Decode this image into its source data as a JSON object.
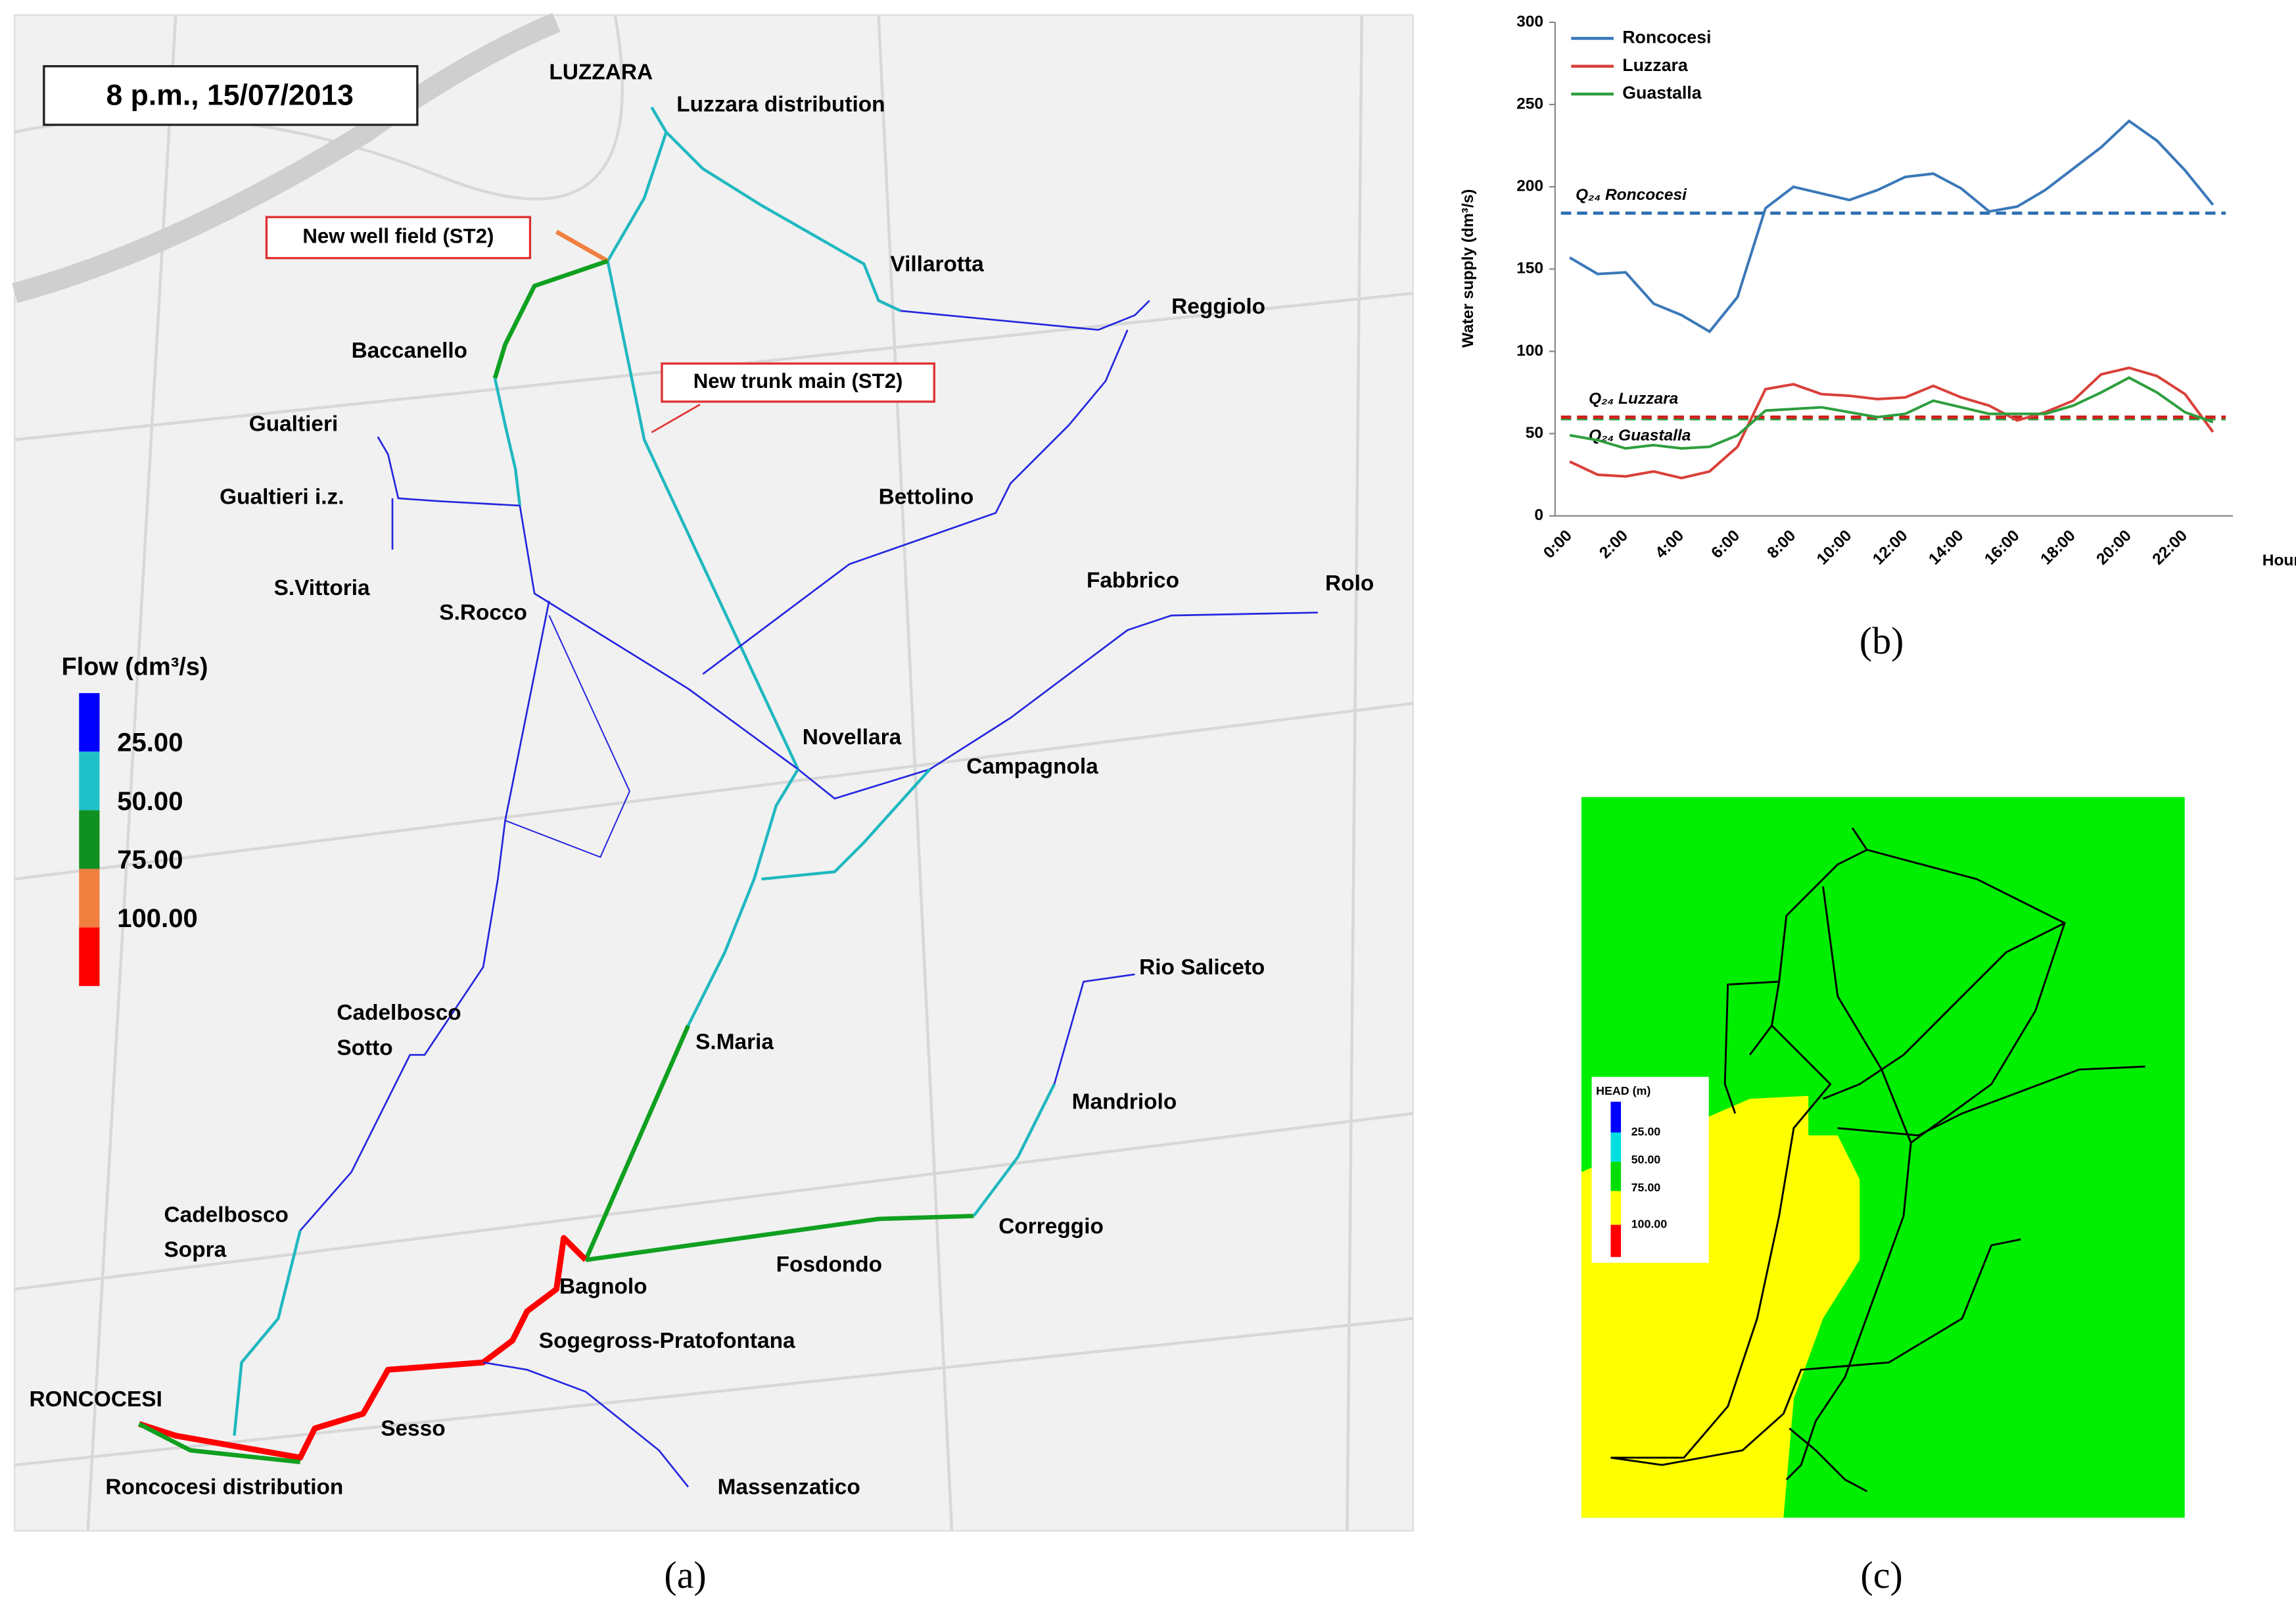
{
  "map": {
    "timestamp": "8 p.m., 15/07/2013",
    "labels": [
      "LUZZARA",
      "Luzzara distribution",
      "Villarotta",
      "Reggiolo",
      "Baccanello",
      "Gualtieri",
      "Gualtieri i.z.",
      "Bettolino",
      "S.Vittoria",
      "S.Rocco",
      "Fabbrico",
      "Rolo",
      "Novellara",
      "Campagnola",
      "Rio Saliceto",
      "Cadelbosco",
      "Sotto",
      "S.Maria",
      "Mandriolo",
      "Cadelbosco",
      "Sopra",
      "Correggio",
      "Fosdondo",
      "Bagnolo",
      "Sogegross-Pratofontana",
      "RONCOCESI",
      "Sesso",
      "Roncocesi distribution",
      "Massenzatico"
    ],
    "annotations": [
      "New well field (ST2)",
      "New trunk main (ST2)"
    ],
    "legend": {
      "title": "Flow (dm³/s)",
      "labels": [
        "25.00",
        "50.00",
        "75.00",
        "100.00"
      ]
    }
  },
  "chart_data": {
    "type": "line",
    "y_label": "Water supply (dm³/s)",
    "x_label": "Hour",
    "categories": [
      "0:00",
      null,
      "2:00",
      null,
      "4:00",
      null,
      "6:00",
      null,
      "8:00",
      null,
      "10:00",
      null,
      "12:00",
      null,
      "14:00",
      null,
      "16:00",
      null,
      "18:00",
      null,
      "20:00",
      null,
      "22:00",
      null
    ],
    "series": [
      {
        "name": "Roncocesi",
        "color": "#3a78b8",
        "values": [
          157,
          147,
          148,
          129,
          122,
          112,
          133,
          187,
          200,
          196,
          192,
          198,
          206,
          208,
          199,
          185,
          188,
          198,
          211,
          224,
          240,
          228,
          210,
          189
        ]
      },
      {
        "name": "Luzzara",
        "color": "#d9403a",
        "values": [
          33,
          25,
          24,
          27,
          23,
          27,
          42,
          77,
          80,
          74,
          73,
          71,
          72,
          79,
          72,
          67,
          58,
          63,
          70,
          86,
          90,
          85,
          74,
          51
        ]
      },
      {
        "name": "Guastalla",
        "color": "#2e9e3e",
        "values": [
          49,
          46,
          41,
          43,
          41,
          42,
          49,
          64,
          65,
          66,
          63,
          60,
          62,
          70,
          66,
          62,
          62,
          62,
          67,
          75,
          84,
          75,
          63,
          57
        ]
      }
    ],
    "reference_lines": [
      {
        "label": "Q₂₄ Roncocesi",
        "value": 184,
        "color": "#2e6fb0"
      },
      {
        "label": "Q₂₄ Guastalla",
        "value": 59,
        "color": "#2e9e3e"
      },
      {
        "label": "Q₂₄ Luzzara",
        "value": 60,
        "color": "#d02020"
      }
    ],
    "ylim": [
      0,
      300
    ],
    "yticks": [
      0,
      50,
      100,
      150,
      200,
      250,
      300
    ]
  },
  "head_map": {
    "legend": {
      "title": "HEAD (m)",
      "labels": [
        "25.00",
        "50.00",
        "75.00",
        "100.00"
      ]
    }
  },
  "captions": [
    "(a)",
    "(b)",
    "(c)"
  ]
}
